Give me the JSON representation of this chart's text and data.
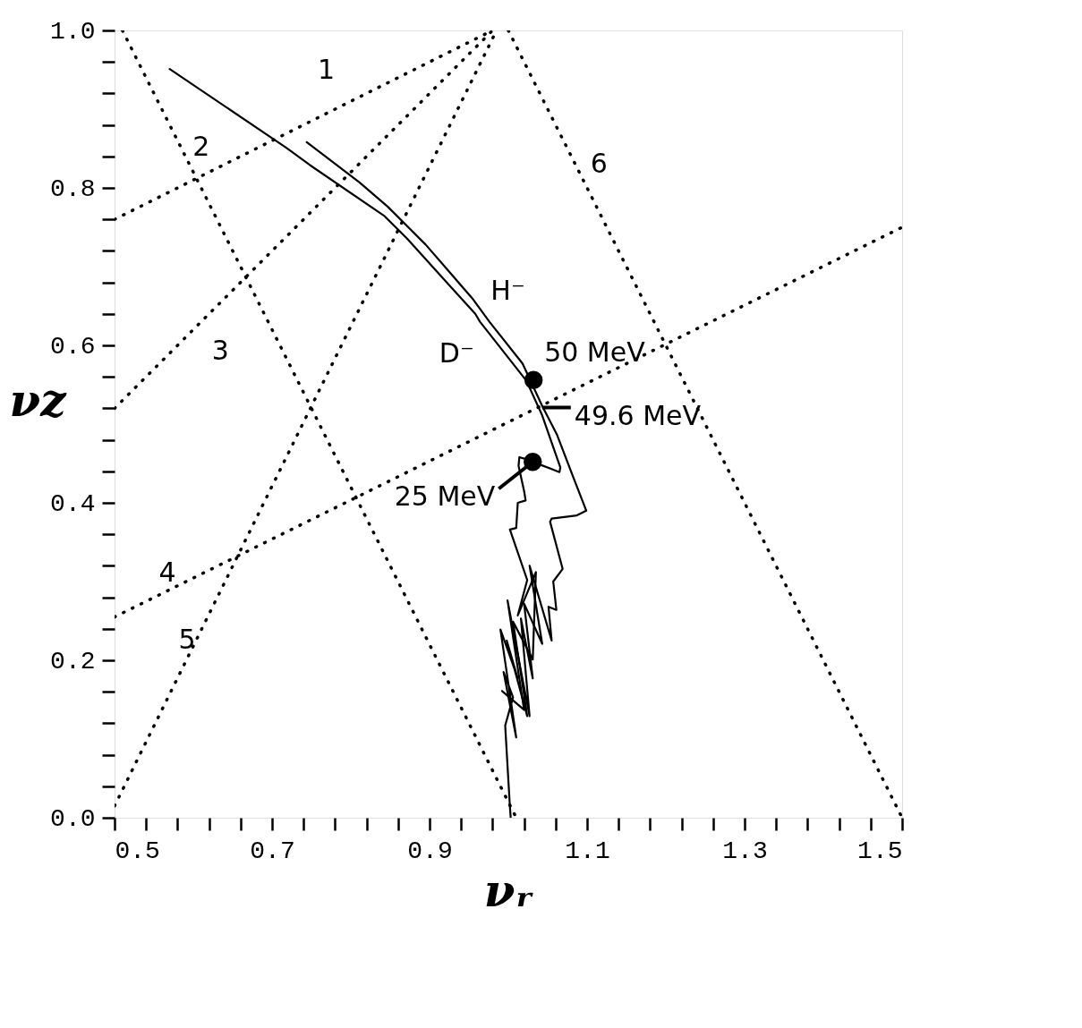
{
  "chart_data": {
    "type": "line",
    "xlabel": "νᵣ",
    "ylabel": "νz",
    "xlim": [
      0.5,
      1.5
    ],
    "ylim": [
      0.0,
      1.0
    ],
    "xticks": [
      0.5,
      {
        "value": 0.54,
        "label": null
      },
      {
        "value": 0.58,
        "label": null
      },
      {
        "value": 0.62,
        "label": null
      },
      {
        "value": 0.66,
        "label": null
      },
      0.7,
      {
        "value": 0.74,
        "label": null
      },
      {
        "value": 0.78,
        "label": null
      },
      {
        "value": 0.82,
        "label": null
      },
      {
        "value": 0.86,
        "label": null
      },
      0.9,
      {
        "value": 0.94,
        "label": null
      },
      {
        "value": 0.98,
        "label": null
      },
      {
        "value": 1.02,
        "label": null
      },
      {
        "value": 1.06,
        "label": null
      },
      1.1,
      {
        "value": 1.14,
        "label": null
      },
      {
        "value": 1.18,
        "label": null
      },
      {
        "value": 1.22,
        "label": null
      },
      {
        "value": 1.26,
        "label": null
      },
      1.3,
      {
        "value": 1.34,
        "label": null
      },
      {
        "value": 1.38,
        "label": null
      },
      {
        "value": 1.42,
        "label": null
      },
      {
        "value": 1.46,
        "label": null
      },
      1.5
    ],
    "yticks": [
      {
        "value": 0.0,
        "label": "0.0"
      },
      {
        "value": 0.04,
        "label": null
      },
      {
        "value": 0.08,
        "label": null
      },
      {
        "value": 0.12,
        "label": null
      },
      {
        "value": 0.16,
        "label": null
      },
      0.2,
      {
        "value": 0.24,
        "label": null
      },
      {
        "value": 0.28,
        "label": null
      },
      {
        "value": 0.32,
        "label": null
      },
      {
        "value": 0.36,
        "label": null
      },
      0.4,
      {
        "value": 0.44,
        "label": null
      },
      {
        "value": 0.48,
        "label": null
      },
      {
        "value": 0.52,
        "label": null
      },
      {
        "value": 0.56,
        "label": null
      },
      0.6,
      {
        "value": 0.64,
        "label": null
      },
      {
        "value": 0.68,
        "label": null
      },
      {
        "value": 0.72,
        "label": null
      },
      {
        "value": 0.76,
        "label": null
      },
      0.8,
      {
        "value": 0.84,
        "label": null
      },
      {
        "value": 0.88,
        "label": null
      },
      {
        "value": 0.92,
        "label": null
      },
      {
        "value": 0.96,
        "label": null
      },
      {
        "value": 1.0,
        "label": "1.0"
      }
    ],
    "grid": false,
    "series": [
      {
        "name": "H⁻",
        "color": "#000000",
        "line_style": "solid",
        "x": [
          0.744,
          0.811,
          0.847,
          0.895,
          0.954,
          0.976,
          1.018,
          1.043,
          1.062,
          1.083,
          1.099,
          1.087,
          1.055,
          1.053,
          1.069,
          1.057,
          1.061,
          1.051,
          1.055,
          1.027,
          1.043,
          1.02,
          1.031,
          1.016,
          1.027,
          0.999,
          1.02,
          0.992
        ],
        "values": [
          0.858,
          0.807,
          0.776,
          0.728,
          0.66,
          0.63,
          0.577,
          0.523,
          0.486,
          0.431,
          0.39,
          0.384,
          0.38,
          0.376,
          0.316,
          0.3,
          0.264,
          0.268,
          0.225,
          0.32,
          0.221,
          0.272,
          0.177,
          0.253,
          0.129,
          0.276,
          0.137,
          0.161
        ]
      },
      {
        "name": "D⁻",
        "color": "#000000",
        "line_style": "solid",
        "x": [
          0.57,
          0.718,
          0.748,
          0.843,
          0.871,
          0.958,
          0.964,
          1.023,
          1.043,
          1.066,
          1.065,
          1.055,
          1.039,
          1.024,
          1.014,
          1.013,
          1.02,
          1.022,
          1.012,
          1.01,
          1.002,
          1.024,
          1.012,
          1.035,
          1.031,
          1.006,
          1.024,
          0.998,
          1.012,
          0.99,
          1.01,
          0.994,
          1.006,
          0.996,
          1.002,
          1.003
        ],
        "values": [
          0.951,
          0.851,
          0.829,
          0.764,
          0.736,
          0.64,
          0.63,
          0.555,
          0.511,
          0.445,
          0.439,
          0.443,
          0.449,
          0.455,
          0.458,
          0.447,
          0.415,
          0.403,
          0.4,
          0.368,
          0.366,
          0.302,
          0.257,
          0.312,
          0.201,
          0.249,
          0.129,
          0.225,
          0.177,
          0.239,
          0.102,
          0.185,
          0.153,
          0.117,
          0.014,
          0.0
        ]
      },
      {
        "name": "1",
        "color": "#000000",
        "line_style": "dotted",
        "x": [
          0.5,
          0.98
        ],
        "values": [
          0.76,
          1.0
        ]
      },
      {
        "name": "2",
        "color": "#000000",
        "line_style": "dotted",
        "x": [
          0.51,
          1.01
        ],
        "values": [
          1.0,
          0.0
        ]
      },
      {
        "name": "3",
        "color": "#000000",
        "line_style": "dotted",
        "x": [
          0.5,
          0.98
        ],
        "values": [
          0.52,
          1.0
        ]
      },
      {
        "name": "4",
        "color": "#000000",
        "line_style": "dotted",
        "x": [
          0.5,
          1.5
        ],
        "values": [
          0.255,
          0.75
        ]
      },
      {
        "name": "5",
        "color": "#000000",
        "line_style": "dotted",
        "x": [
          0.5,
          0.985
        ],
        "values": [
          0.015,
          1.0
        ]
      },
      {
        "name": "6",
        "color": "#000000",
        "line_style": "dotted",
        "x": [
          1.0,
          1.5
        ],
        "values": [
          1.0,
          0.0
        ]
      },
      {
        "color": "#000000",
        "type": "scatter",
        "marker": "circle",
        "x": [
          1.032,
          1.031
        ],
        "values": [
          0.556,
          0.452
        ]
      }
    ],
    "annotations": [
      {
        "text": "50 MeV",
        "x": 1.032,
        "y": 0.556
      },
      {
        "text": "49.6 MeV",
        "x": 1.043,
        "y": 0.521
      },
      {
        "text": "25 MeV",
        "x": 1.031,
        "y": 0.452
      }
    ]
  }
}
